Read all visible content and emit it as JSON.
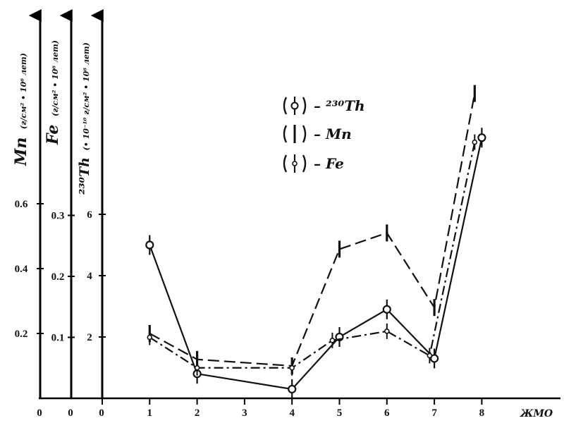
{
  "chart_data": {
    "type": "line",
    "xlabel": "ЖМО",
    "categories": [
      "1",
      "2",
      "3",
      "4",
      "5",
      "6",
      "7",
      "8"
    ],
    "x_ticks": [
      0,
      1,
      2,
      3,
      4,
      5,
      6,
      7,
      8
    ],
    "axes": [
      {
        "id": "mn",
        "symbol": "Mn",
        "units": "(г/см² • 10⁶ лет)",
        "zero": "0",
        "ticks": [
          0.2,
          0.4,
          0.6
        ],
        "tick_labels": [
          "0.2",
          "0.4",
          "0.6"
        ]
      },
      {
        "id": "fe",
        "symbol": "Fe",
        "units": "(г/см² • 10⁶ лет)",
        "zero": "0",
        "ticks": [
          0.1,
          0.2,
          0.3
        ],
        "tick_labels": [
          "0.1",
          "0.2",
          "0.3"
        ]
      },
      {
        "id": "th",
        "symbol": "²³⁰Th",
        "units": "(• 10⁻¹⁰ г/см² • 10⁶ лет)",
        "zero": "0",
        "ticks": [
          2,
          4,
          6
        ],
        "tick_labels": [
          "2",
          "4",
          "6"
        ]
      }
    ],
    "series": [
      {
        "name": "– ²³⁰Th",
        "axis": "th",
        "style": "solid",
        "marker": "circle",
        "color": "#111111",
        "points": [
          [
            1,
            5.0
          ],
          [
            2,
            0.8
          ],
          [
            4,
            0.3
          ],
          [
            5,
            2.0
          ],
          [
            6,
            2.9
          ],
          [
            7,
            1.3
          ],
          [
            8,
            8.5
          ]
        ]
      },
      {
        "name": "– Mn",
        "axis": "mn",
        "style": "dashed",
        "marker": "bar",
        "color": "#111111",
        "points": [
          [
            1,
            0.2
          ],
          [
            2,
            0.12
          ],
          [
            4,
            0.1
          ],
          [
            5,
            0.46
          ],
          [
            6,
            0.51
          ],
          [
            7,
            0.28
          ],
          [
            7.85,
            0.94
          ]
        ]
      },
      {
        "name": "– Fe",
        "axis": "fe",
        "style": "dashdot",
        "marker": "diamond",
        "color": "#111111",
        "points": [
          [
            1,
            0.1
          ],
          [
            2,
            0.05
          ],
          [
            4,
            0.05
          ],
          [
            4.85,
            0.095
          ],
          [
            6,
            0.11
          ],
          [
            6.9,
            0.07
          ],
          [
            7.85,
            0.42
          ]
        ]
      }
    ],
    "legend_position": "top-center",
    "grid": false
  }
}
